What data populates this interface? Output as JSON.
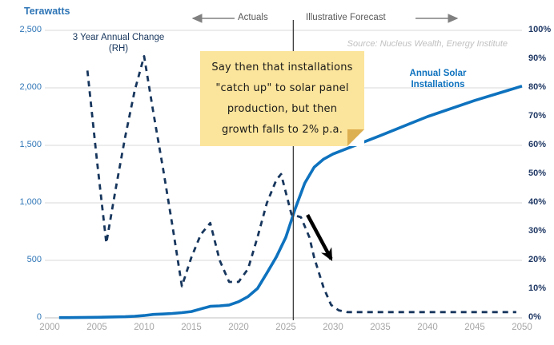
{
  "title": {
    "text": "Terawatts"
  },
  "top_banner": {
    "actuals_label": "Actuals",
    "forecast_label": "Illustrative Forecast"
  },
  "source": "Source: Nucleus Wealth, Energy Institute",
  "series_labels": {
    "annual_change_line1": "3 Year Annual Change",
    "annual_change_line2": "(RH)",
    "installations_line1": "Annual Solar",
    "installations_line2": "Installations"
  },
  "note": {
    "lines": [
      "Say then that installations",
      "\"catch up\" to solar panel",
      "production, but then",
      "growth falls to 2% p.a."
    ]
  },
  "colors": {
    "installations_line": "#0E72BE",
    "annual_change_line": "#17365D",
    "left_ticks": "#2E75B6",
    "right_ticks": "#1F3864",
    "x_ticks": "#A6A6A6",
    "gridline": "#D9D9D9",
    "axis_line": "#BFBFBF",
    "banner_text": "#595959",
    "banner_arrow": "#808080",
    "divider_line": "#404040",
    "note_bg": "#FBE49B",
    "note_fold": "#DCAF50",
    "annotation_arrow": "#000000"
  },
  "chart_data": {
    "type": "line",
    "x_axis": {
      "range": [
        2000,
        2050
      ],
      "ticks": [
        2000,
        2005,
        2010,
        2015,
        2020,
        2025,
        2030,
        2035,
        2040,
        2045,
        2050
      ]
    },
    "left_axis": {
      "title": "Terawatts",
      "range": [
        0,
        2500
      ],
      "gridlines_at": [
        0,
        500,
        1000,
        1500,
        2000,
        2500
      ],
      "ticks": [
        {
          "label": "0",
          "value": 0
        },
        {
          "label": "500",
          "value": 500
        },
        {
          "label": "1,000",
          "value": 1000
        },
        {
          "label": "1,500",
          "value": 1500
        },
        {
          "label": "2,000",
          "value": 2000
        },
        {
          "label": "2,500",
          "value": 2500
        }
      ]
    },
    "right_axis": {
      "range": [
        0,
        100
      ],
      "ticks": [
        {
          "label": "0%",
          "value": 0
        },
        {
          "label": "10%",
          "value": 10
        },
        {
          "label": "20%",
          "value": 20
        },
        {
          "label": "30%",
          "value": 30
        },
        {
          "label": "40%",
          "value": 40
        },
        {
          "label": "50%",
          "value": 50
        },
        {
          "label": "60%",
          "value": 60
        },
        {
          "label": "70%",
          "value": 70
        },
        {
          "label": "80%",
          "value": 80
        },
        {
          "label": "90%",
          "value": 90
        },
        {
          "label": "100%",
          "value": 100
        }
      ]
    },
    "series": [
      {
        "name": "Annual Solar Installations",
        "axis": "left",
        "style": "solid",
        "color": "#0E72BE",
        "points": [
          [
            2001,
            2
          ],
          [
            2002,
            2
          ],
          [
            2003,
            3
          ],
          [
            2004,
            4
          ],
          [
            2005,
            5
          ],
          [
            2006,
            6
          ],
          [
            2007,
            8
          ],
          [
            2008,
            10
          ],
          [
            2009,
            14
          ],
          [
            2010,
            20
          ],
          [
            2011,
            30
          ],
          [
            2012,
            33
          ],
          [
            2013,
            38
          ],
          [
            2014,
            45
          ],
          [
            2015,
            55
          ],
          [
            2016,
            78
          ],
          [
            2017,
            100
          ],
          [
            2018,
            104
          ],
          [
            2019,
            112
          ],
          [
            2020,
            140
          ],
          [
            2021,
            185
          ],
          [
            2022,
            255
          ],
          [
            2023,
            390
          ],
          [
            2024,
            530
          ],
          [
            2025,
            700
          ],
          [
            2026,
            950
          ],
          [
            2027,
            1170
          ],
          [
            2028,
            1310
          ],
          [
            2029,
            1380
          ],
          [
            2030,
            1425
          ],
          [
            2035,
            1585
          ],
          [
            2040,
            1750
          ],
          [
            2045,
            1890
          ],
          [
            2050,
            2015
          ]
        ]
      },
      {
        "name": "3 Year Annual Change (RH)",
        "axis": "right",
        "style": "dashed",
        "color": "#17365D",
        "points": [
          [
            2004,
            86
          ],
          [
            2005,
            55
          ],
          [
            2006,
            26
          ],
          [
            2007,
            45
          ],
          [
            2008,
            63
          ],
          [
            2009,
            79
          ],
          [
            2010,
            91
          ],
          [
            2011,
            71
          ],
          [
            2012,
            52
          ],
          [
            2013,
            32
          ],
          [
            2014,
            11
          ],
          [
            2015,
            21
          ],
          [
            2016,
            29
          ],
          [
            2017,
            33
          ],
          [
            2018,
            20
          ],
          [
            2019,
            12.5
          ],
          [
            2020,
            12.5
          ],
          [
            2021,
            17
          ],
          [
            2022,
            28
          ],
          [
            2023,
            40
          ],
          [
            2024,
            48
          ],
          [
            2024.5,
            50
          ],
          [
            2025.6,
            36
          ],
          [
            2026.6,
            35
          ],
          [
            2027.5,
            28
          ],
          [
            2028,
            21
          ],
          [
            2029,
            10.5
          ],
          [
            2029.8,
            4.5
          ],
          [
            2030.6,
            2.6
          ],
          [
            2031.5,
            2
          ],
          [
            2049.4,
            2
          ]
        ]
      }
    ],
    "forecast_divider_year": 2025.8,
    "annotation_arrow": {
      "from_year": 2027.3,
      "from_pct": 35.8,
      "to_year": 2029.8,
      "to_pct": 20.5
    }
  }
}
